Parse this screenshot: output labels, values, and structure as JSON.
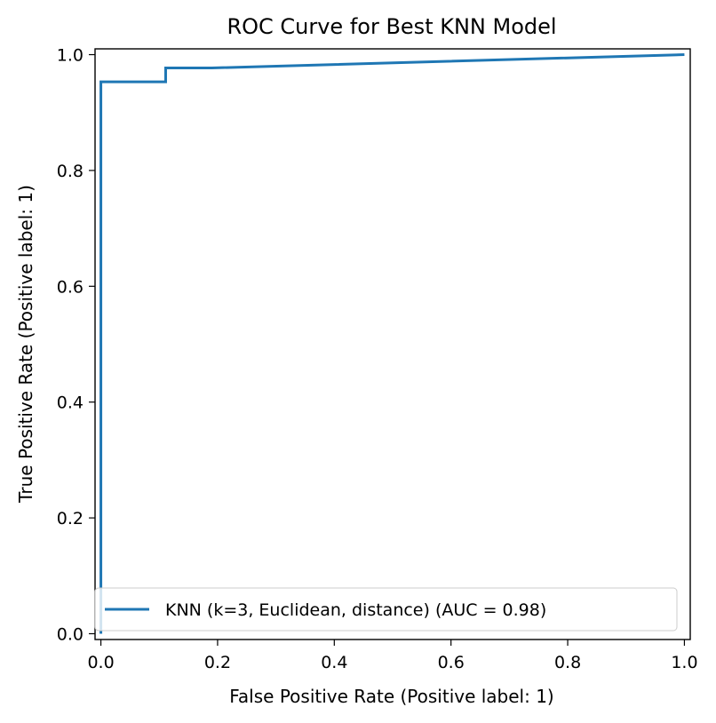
{
  "chart_data": {
    "type": "line",
    "title": "ROC Curve for Best KNN Model",
    "xlabel": "False Positive Rate (Positive label: 1)",
    "ylabel": "True Positive Rate (Positive label: 1)",
    "xlim": [
      -0.01,
      1.01
    ],
    "ylim": [
      -0.01,
      1.01
    ],
    "xticks": [
      0.0,
      0.2,
      0.4,
      0.6,
      0.8,
      1.0
    ],
    "xtick_labels": [
      "0.0",
      "0.2",
      "0.4",
      "0.6",
      "0.8",
      "1.0"
    ],
    "yticks": [
      0.0,
      0.2,
      0.4,
      0.6,
      0.8,
      1.0
    ],
    "ytick_labels": [
      "0.0",
      "0.2",
      "0.4",
      "0.6",
      "0.8",
      "1.0"
    ],
    "grid": false,
    "legend_position": "lower-right",
    "series": [
      {
        "name": "KNN (k=3, Euclidean, distance) (AUC = 0.98)",
        "color": "#1f77b4",
        "x": [
          0.0,
          0.0,
          0.111,
          0.111,
          0.19,
          1.0
        ],
        "y": [
          0.0,
          0.953,
          0.953,
          0.977,
          0.977,
          1.0
        ]
      }
    ]
  }
}
